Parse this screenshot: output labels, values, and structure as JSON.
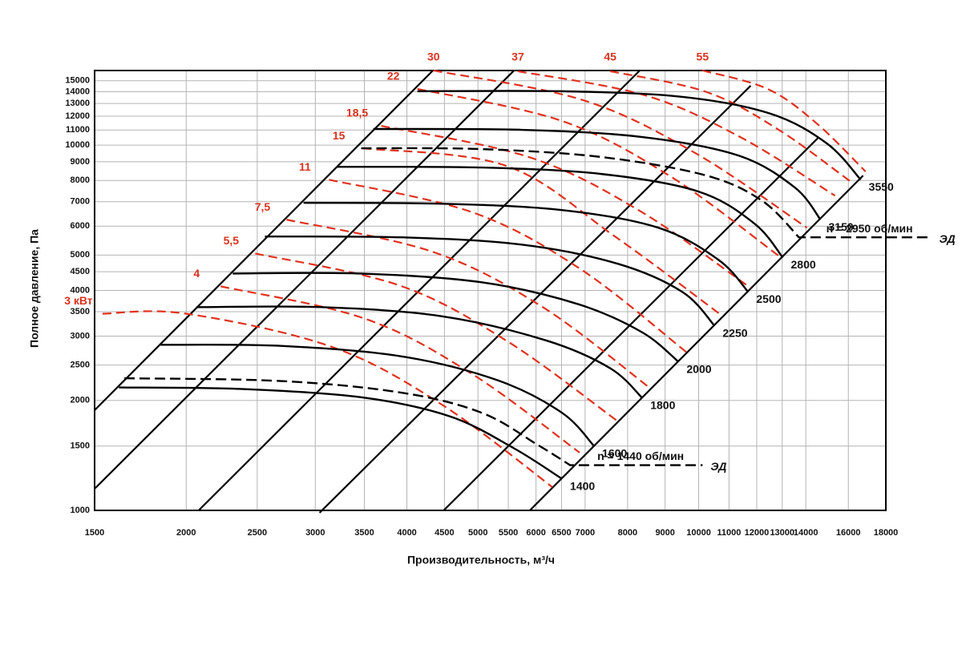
{
  "chart_data": {
    "type": "line",
    "xscale": "log",
    "yscale": "log",
    "xlabel": "Производительность, м³/ч",
    "ylabel": "Полное давление, Па",
    "xlim": [
      1500,
      18000
    ],
    "ylim": [
      1000,
      16000
    ],
    "xticks": [
      1500,
      2000,
      2500,
      3000,
      3500,
      4000,
      4500,
      5000,
      5500,
      6000,
      6500,
      7000,
      8000,
      9000,
      10000,
      11000,
      12000,
      13000,
      14000,
      16000,
      18000
    ],
    "yticks": [
      1000,
      1500,
      2000,
      2500,
      3000,
      3500,
      4000,
      4500,
      5000,
      6000,
      7000,
      8000,
      9000,
      10000,
      11000,
      12000,
      13000,
      14000,
      15000
    ],
    "grid": true,
    "system_lines": {
      "color": "#000000",
      "lines": [
        {
          "x": [
            1500,
            4340
          ],
          "y": [
            1880,
            16000
          ]
        },
        {
          "x": [
            1500,
            5600
          ],
          "y": [
            1146,
            16000
          ]
        },
        {
          "x": [
            2080,
            8310
          ],
          "y": [
            1000,
            16000
          ]
        },
        {
          "x": [
            3040,
            11775
          ],
          "y": [
            985,
            14540
          ]
        },
        {
          "x": [
            4490,
            14590
          ],
          "y": [
            1000,
            10520
          ]
        },
        {
          "x": [
            5885,
            16760
          ],
          "y": [
            1000,
            8250
          ]
        }
      ]
    },
    "power_series": [
      {
        "name": "3 кВт",
        "color": "#e0321e",
        "dashed": true,
        "x": [
          1538,
          2000,
          3165,
          4471,
          6316
        ],
        "y": [
          3455,
          3455,
          2800,
          1944,
          1158
        ]
      },
      {
        "name": "4",
        "color": "#e0321e",
        "dashed": true,
        "x": [
          2229,
          3500,
          4908,
          6880
        ],
        "y": [
          4105,
          3352,
          2363,
          1439
        ]
      },
      {
        "name": "5,5",
        "color": "#e0321e",
        "dashed": true,
        "x": [
          2484,
          3912,
          5497,
          7728
        ],
        "y": [
          5050,
          4125,
          2894,
          1763
        ]
      },
      {
        "name": "7,5",
        "color": "#e0321e",
        "dashed": true,
        "x": [
          2741,
          4338,
          6129,
          8590
        ],
        "y": [
          6250,
          5102,
          3600,
          2159
        ]
      },
      {
        "name": "11",
        "color": "#e0321e",
        "dashed": true,
        "x": [
          3132,
          4922,
          6915,
          9625
        ],
        "y": [
          8040,
          6538,
          4563,
          2710
        ]
      },
      {
        "name": "15",
        "color": "#e0321e",
        "dashed": true,
        "x": [
          3483,
          5469,
          7689,
          10781
        ],
        "y": [
          9800,
          8769,
          5620,
          3403
        ]
      },
      {
        "name": "18,5",
        "color": "#e0321e",
        "dashed": true,
        "x": [
          3690,
          5870,
          8313,
          11775
        ],
        "y": [
          11290,
          9270,
          6604,
          4062
        ]
      },
      {
        "name": "22",
        "color": "#e0321e",
        "dashed": true,
        "x": [
          4134,
          6510,
          9152,
          12861
        ],
        "y": [
          14250,
          11640,
          8208,
          4973
        ]
      },
      {
        "name": "30",
        "color": "#e0321e",
        "dashed": true,
        "x": [
          4349,
          6951,
          9896,
          14049
        ],
        "y": [
          16000,
          13280,
          9507,
          5940
        ]
      },
      {
        "name": "37",
        "color": "#e0321e",
        "dashed": true,
        "x": [
          5667,
          8442,
          11393,
          15344
        ],
        "y": [
          15930,
          13690,
          10520,
          7270
        ]
      },
      {
        "name": "45",
        "color": "#e0321e",
        "dashed": true,
        "x": [
          7573,
          10251,
          12861,
          16141
        ],
        "y": [
          15930,
          13970,
          11010,
          7924
        ]
      },
      {
        "name": "55",
        "color": "#e0321e",
        "dashed": true,
        "x": [
          10122,
          12414,
          14481,
          16890
        ],
        "y": [
          16000,
          14250,
          11470,
          8463
        ]
      }
    ],
    "speed_series": [
      {
        "name": "1400",
        "color": "#000000",
        "dashed": false,
        "x": [
          1619,
          2373,
          3465,
          4573,
          5595,
          6510
        ],
        "y": [
          2170,
          2150,
          2040,
          1810,
          1480,
          1220
        ]
      },
      {
        "name": "1600",
        "color": "#000000",
        "dashed": false,
        "x": [
          1845,
          2693,
          3932,
          5320,
          6510,
          7200
        ],
        "y": [
          2840,
          2820,
          2640,
          2270,
          1850,
          1500
        ]
      },
      {
        "name": "1800",
        "color": "#000000",
        "dashed": false,
        "x": [
          2066,
          3056,
          4460,
          6190,
          7573,
          8378
        ],
        "y": [
          3600,
          3600,
          3400,
          2920,
          2450,
          2030
        ]
      },
      {
        "name": "2000",
        "color": "#000000",
        "dashed": false,
        "x": [
          2315,
          3465,
          5059,
          6846,
          8378,
          9387
        ],
        "y": [
          4450,
          4450,
          4210,
          3670,
          3070,
          2550
        ]
      },
      {
        "name": "2250",
        "color": "#000000",
        "dashed": false,
        "x": [
          2561,
          3932,
          5738,
          7765,
          9505,
          10513
        ],
        "y": [
          5620,
          5590,
          5340,
          4730,
          3960,
          3200
        ]
      },
      {
        "name": "2500",
        "color": "#000000",
        "dashed": false,
        "x": [
          2891,
          4460,
          6510,
          8810,
          10645,
          11685
        ],
        "y": [
          6950,
          6910,
          6640,
          5940,
          4850,
          3960
        ]
      },
      {
        "name": "2800",
        "color": "#000000",
        "dashed": false,
        "x": [
          3214,
          5059,
          7383,
          9997,
          11922,
          13025
        ],
        "y": [
          8720,
          8680,
          8330,
          7460,
          6090,
          4920
        ]
      },
      {
        "name": "3150",
        "color": "#000000",
        "dashed": false,
        "x": [
          3599,
          5738,
          8378,
          11334,
          13527,
          14661
        ],
        "y": [
          11070,
          11010,
          10520,
          9360,
          7650,
          6250
        ]
      },
      {
        "name": "3550",
        "color": "#000000",
        "dashed": false,
        "x": [
          4134,
          6510,
          9505,
          12540,
          14963,
          16635
        ],
        "y": [
          14040,
          14040,
          13550,
          12180,
          10100,
          8040
        ]
      }
    ],
    "motor_series": [
      {
        "name": "n = 1440 об/мин",
        "tag": "ЭД",
        "color": "#000000",
        "dashed": true,
        "x": [
          1647,
          2693,
          3932,
          5059,
          6036,
          6677,
          10122
        ],
        "y": [
          2300,
          2260,
          2100,
          1850,
          1510,
          1330,
          1330
        ]
      },
      {
        "name": "n = 2950 об/мин",
        "tag": "ЭД",
        "color": "#000000",
        "dashed": true,
        "x": [
          3465,
          5059,
          7383,
          10251,
          12227,
          13700,
          20760
        ],
        "y": [
          9800,
          9750,
          9270,
          8250,
          7020,
          5590,
          5590
        ]
      }
    ]
  }
}
